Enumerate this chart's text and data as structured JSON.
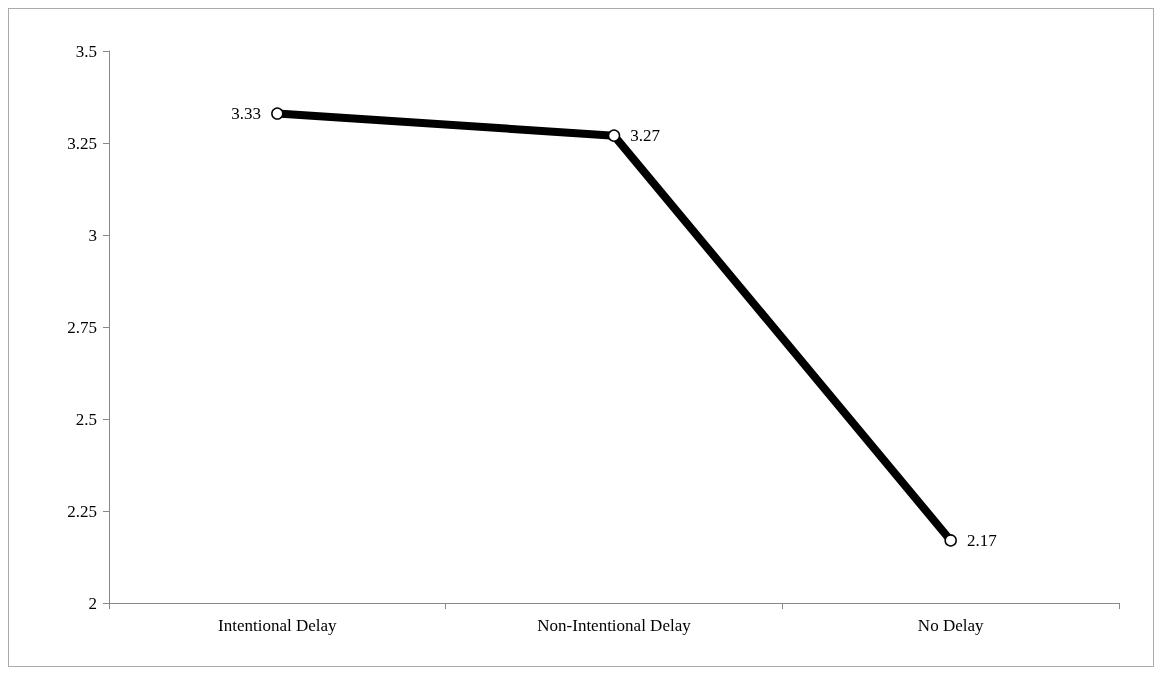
{
  "chart_data": {
    "type": "line",
    "categories": [
      "Intentional Delay",
      "Non-Intentional Delay",
      "No Delay"
    ],
    "series": [
      {
        "color": "#000000",
        "values": [
          3.33,
          3.27,
          2.17
        ]
      }
    ],
    "ylim": [
      2,
      3.5
    ],
    "yticks": [
      2,
      2.25,
      2.5,
      2.75,
      3,
      3.25,
      3.5
    ],
    "marker": "circle",
    "line_style": "solid",
    "data_labels": true
  }
}
